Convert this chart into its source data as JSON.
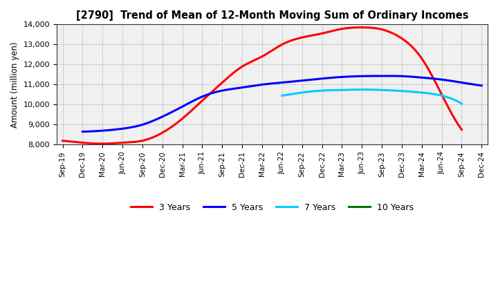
{
  "title": "[2790]  Trend of Mean of 12-Month Moving Sum of Ordinary Incomes",
  "ylabel": "Amount (million yen)",
  "ylim": [
    8000,
    14000
  ],
  "yticks": [
    8000,
    9000,
    10000,
    11000,
    12000,
    13000,
    14000
  ],
  "background_color": "#ffffff",
  "plot_bg_color": "#f0f0f0",
  "grid_color": "#888888",
  "x_labels": [
    "Sep-19",
    "Dec-19",
    "Mar-20",
    "Jun-20",
    "Sep-20",
    "Dec-20",
    "Mar-21",
    "Jun-21",
    "Sep-21",
    "Dec-21",
    "Mar-22",
    "Jun-22",
    "Sep-22",
    "Dec-22",
    "Mar-23",
    "Jun-23",
    "Sep-23",
    "Dec-23",
    "Mar-24",
    "Jun-24",
    "Sep-24",
    "Dec-24"
  ],
  "series": {
    "3 Years": {
      "color": "#ff0000",
      "data": [
        8200,
        8100,
        8050,
        8100,
        8200,
        8600,
        9300,
        10200,
        11100,
        11900,
        12400,
        13000,
        13350,
        13550,
        13780,
        13850,
        13750,
        13300,
        12300,
        10500,
        8750,
        null
      ]
    },
    "5 Years": {
      "color": "#0000ff",
      "data": [
        null,
        8650,
        8700,
        8800,
        9000,
        9400,
        9900,
        10400,
        10700,
        10850,
        11000,
        11100,
        11200,
        11300,
        11380,
        11420,
        11430,
        11420,
        11350,
        11250,
        11100,
        10950
      ]
    },
    "7 Years": {
      "color": "#00ccff",
      "data": [
        null,
        null,
        null,
        null,
        null,
        null,
        null,
        null,
        null,
        null,
        null,
        10450,
        10600,
        10700,
        10730,
        10750,
        10730,
        10680,
        10600,
        10450,
        10050,
        null
      ]
    },
    "10 Years": {
      "color": "#007700",
      "data": [
        null,
        null,
        null,
        null,
        null,
        null,
        null,
        null,
        null,
        null,
        null,
        null,
        null,
        null,
        null,
        null,
        null,
        null,
        null,
        null,
        null,
        null
      ]
    }
  },
  "legend_labels": [
    "3 Years",
    "5 Years",
    "7 Years",
    "10 Years"
  ],
  "legend_colors": [
    "#ff0000",
    "#0000ff",
    "#00ccff",
    "#007700"
  ]
}
